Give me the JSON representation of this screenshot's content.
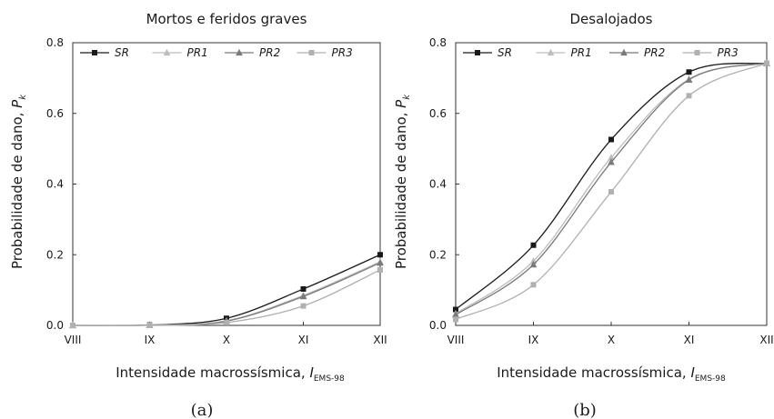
{
  "chart_data": [
    {
      "type": "line",
      "title": "Mortos e feridos graves",
      "caption": "(a)",
      "xlabel": "Intensidade macrossísmica, ",
      "xlabel_sym": "I",
      "xlabel_sub": "EMS-98",
      "ylabel": "Probabilidade de dano, ",
      "ylabel_sym": "P",
      "ylabel_sub": "k",
      "categories": [
        "VIII",
        "IX",
        "X",
        "XI",
        "XII"
      ],
      "ylim": [
        0,
        0.8
      ],
      "yticks": [
        "0.0",
        "0.2",
        "0.4",
        "0.6",
        "0.8"
      ],
      "grid": false,
      "legend": "top",
      "series": [
        {
          "name": "SR",
          "color": "#1a1a1a",
          "marker": "square",
          "values": [
            0.0,
            0.001,
            0.02,
            0.103,
            0.2
          ]
        },
        {
          "name": "PR1",
          "color": "#bdbdbd",
          "marker": "triangle",
          "values": [
            0.0,
            0.001,
            0.013,
            0.085,
            0.18
          ]
        },
        {
          "name": "PR2",
          "color": "#7a7a7a",
          "marker": "triangle",
          "values": [
            0.0,
            0.001,
            0.012,
            0.082,
            0.177
          ]
        },
        {
          "name": "PR3",
          "color": "#b0b0b0",
          "marker": "square",
          "values": [
            0.0,
            0.0,
            0.008,
            0.055,
            0.157
          ]
        }
      ]
    },
    {
      "type": "line",
      "title": "Desalojados",
      "caption": "(b)",
      "xlabel": "Intensidade macrossísmica, ",
      "xlabel_sym": "I",
      "xlabel_sub": "EMS-98",
      "ylabel": "Probabilidade de dano, ",
      "ylabel_sym": "P",
      "ylabel_sub": "k",
      "categories": [
        "VIII",
        "IX",
        "X",
        "XI",
        "XII"
      ],
      "ylim": [
        0,
        0.8
      ],
      "yticks": [
        "0.0",
        "0.2",
        "0.4",
        "0.6",
        "0.8"
      ],
      "grid": false,
      "legend": "top",
      "series": [
        {
          "name": "SR",
          "color": "#1a1a1a",
          "marker": "square",
          "values": [
            0.045,
            0.227,
            0.526,
            0.717,
            0.742
          ]
        },
        {
          "name": "PR1",
          "color": "#bdbdbd",
          "marker": "triangle",
          "values": [
            0.033,
            0.182,
            0.475,
            0.697,
            0.742
          ]
        },
        {
          "name": "PR2",
          "color": "#7a7a7a",
          "marker": "triangle",
          "values": [
            0.03,
            0.172,
            0.462,
            0.695,
            0.742
          ]
        },
        {
          "name": "PR3",
          "color": "#b0b0b0",
          "marker": "square",
          "values": [
            0.017,
            0.115,
            0.378,
            0.65,
            0.742
          ]
        }
      ]
    }
  ]
}
